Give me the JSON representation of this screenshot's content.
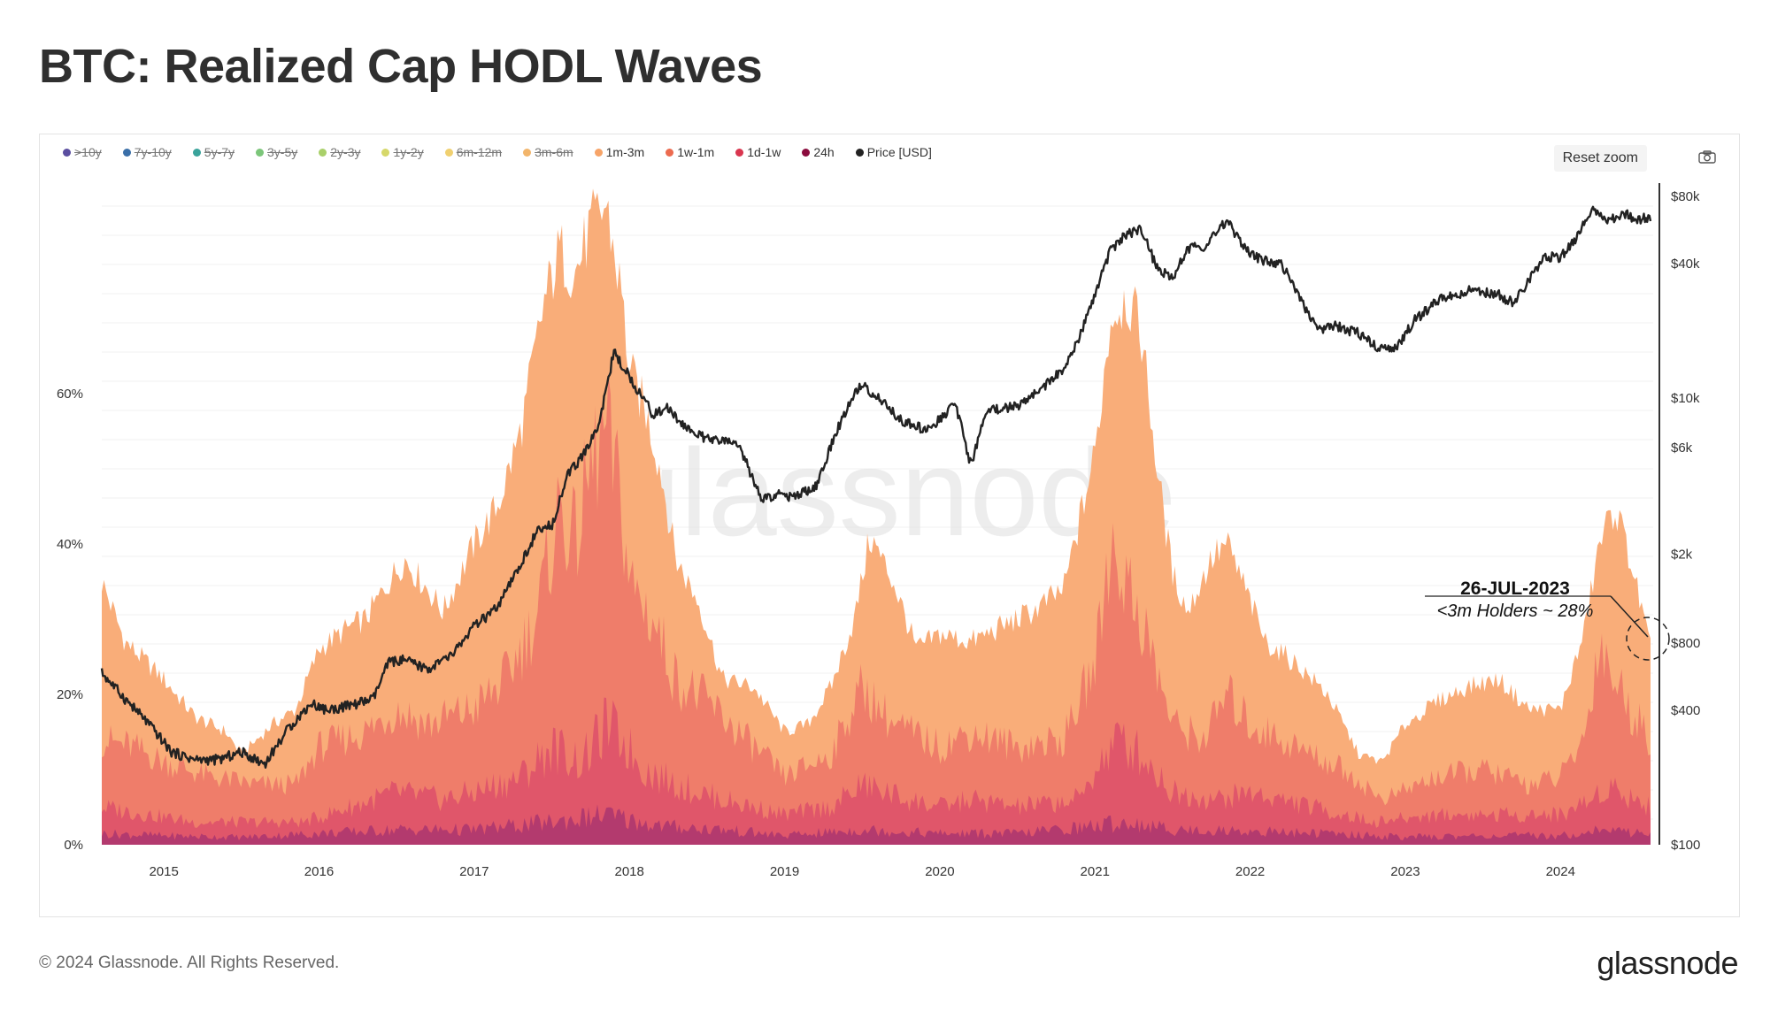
{
  "page": {
    "title": "BTC: Realized Cap HODL Waves"
  },
  "toolbar": {
    "reset_zoom_label": "Reset zoom",
    "camera_icon": "camera-icon"
  },
  "legend": [
    {
      "label": ">10y",
      "color": "#5b4ea0",
      "visible": false
    },
    {
      "label": "7y-10y",
      "color": "#3a6fa8",
      "visible": false
    },
    {
      "label": "5y-7y",
      "color": "#3aa39b",
      "visible": false
    },
    {
      "label": "3y-5y",
      "color": "#7cc67a",
      "visible": false
    },
    {
      "label": "2y-3y",
      "color": "#a9d06a",
      "visible": false
    },
    {
      "label": "1y-2y",
      "color": "#d6d86a",
      "visible": false
    },
    {
      "label": "6m-12m",
      "color": "#f0d070",
      "visible": false
    },
    {
      "label": "3m-6m",
      "color": "#f2b56b",
      "visible": false
    },
    {
      "label": "1m-3m",
      "color": "#f7a468",
      "visible": true
    },
    {
      "label": "1w-1m",
      "color": "#ec6b4f",
      "visible": true
    },
    {
      "label": "1d-1w",
      "color": "#d9364f",
      "visible": true
    },
    {
      "label": "24h",
      "color": "#8b0c3e",
      "visible": true
    },
    {
      "label": "Price [USD]",
      "color": "#222222",
      "visible": true
    }
  ],
  "watermark": "glassnode",
  "annotation": {
    "date": "26-JUL-2023",
    "text": "<3m Holders ~ 28%"
  },
  "footer": {
    "copyright": "© 2024 Glassnode. All Rights Reserved.",
    "logo": "glassnode"
  },
  "chart_data": {
    "type": "area",
    "title": "BTC: Realized Cap HODL Waves",
    "x_ticks": [
      2015,
      2016,
      2017,
      2018,
      2019,
      2020,
      2021,
      2022,
      2023,
      2024
    ],
    "xlim": [
      2014.6,
      2024.58
    ],
    "y_left": {
      "ticks": [
        "0%",
        "20%",
        "40%",
        "60%"
      ],
      "values": [
        0,
        20,
        40,
        60
      ],
      "ylim": [
        0,
        60
      ]
    },
    "y_right": {
      "scale": "log",
      "ticks": [
        "$100",
        "$400",
        "$800",
        "$2k",
        "$6k",
        "$10k",
        "$40k",
        "$80k"
      ],
      "values": [
        100,
        400,
        800,
        2000,
        6000,
        10000,
        40000,
        80000
      ],
      "ylim": [
        100,
        80000
      ]
    },
    "series": [
      {
        "name": "1m-3m",
        "type": "stacked-area",
        "color": "#f9ad79",
        "x": [
          2014.6,
          2014.75,
          2015.0,
          2015.2,
          2015.4,
          2015.5,
          2015.7,
          2015.85,
          2016.0,
          2016.2,
          2016.3,
          2016.45,
          2016.55,
          2016.7,
          2016.8,
          2017.0,
          2017.15,
          2017.3,
          2017.45,
          2017.55,
          2017.65,
          2017.75,
          2017.85,
          2017.95,
          2018.0,
          2018.1,
          2018.2,
          2018.3,
          2018.45,
          2018.6,
          2018.8,
          2019.0,
          2019.15,
          2019.3,
          2019.45,
          2019.55,
          2019.7,
          2019.85,
          2020.0,
          2020.2,
          2020.4,
          2020.6,
          2020.8,
          2021.0,
          2021.1,
          2021.2,
          2021.3,
          2021.4,
          2021.5,
          2021.6,
          2021.75,
          2021.85,
          2021.95,
          2022.1,
          2022.3,
          2022.5,
          2022.7,
          2022.85,
          2023.0,
          2023.2,
          2023.4,
          2023.6,
          2023.8,
          2024.0,
          2024.15,
          2024.25,
          2024.35,
          2024.45,
          2024.58
        ],
        "values": [
          35,
          27,
          22,
          17,
          15,
          12,
          16,
          18,
          26,
          29,
          30,
          35,
          38,
          34,
          31,
          40,
          45,
          55,
          72,
          79,
          76,
          82,
          85,
          73,
          63,
          58,
          50,
          38,
          32,
          22,
          21,
          15,
          16,
          21,
          30,
          41,
          35,
          26,
          28,
          27,
          29,
          31,
          34,
          52,
          70,
          73,
          68,
          50,
          36,
          31,
          38,
          40,
          35,
          27,
          24,
          20,
          12,
          11,
          16,
          19,
          21,
          22,
          18,
          18,
          28,
          40,
          45,
          38,
          26
        ]
      },
      {
        "name": "1w-1m",
        "type": "stacked-area",
        "color": "#ef7d6a",
        "x": [
          2014.6,
          2014.8,
          2015.0,
          2015.3,
          2015.6,
          2015.85,
          2016.0,
          2016.3,
          2016.5,
          2016.7,
          2017.0,
          2017.2,
          2017.4,
          2017.55,
          2017.65,
          2017.75,
          2017.85,
          2017.95,
          2018.0,
          2018.15,
          2018.3,
          2018.5,
          2018.7,
          2019.0,
          2019.3,
          2019.5,
          2019.7,
          2020.0,
          2020.2,
          2020.5,
          2020.8,
          2021.0,
          2021.1,
          2021.2,
          2021.3,
          2021.5,
          2021.7,
          2021.85,
          2022.0,
          2022.3,
          2022.6,
          2022.85,
          2023.2,
          2023.5,
          2023.8,
          2024.0,
          2024.15,
          2024.25,
          2024.35,
          2024.45,
          2024.58
        ],
        "values": [
          14,
          13,
          11,
          9,
          8,
          8,
          13,
          15,
          18,
          16,
          18,
          22,
          30,
          45,
          40,
          50,
          55,
          45,
          35,
          30,
          22,
          19,
          15,
          9,
          12,
          21,
          16,
          13,
          15,
          13,
          14,
          24,
          40,
          35,
          30,
          16,
          14,
          20,
          16,
          13,
          10,
          6,
          9,
          10,
          8,
          9,
          14,
          27,
          22,
          18,
          14
        ]
      },
      {
        "name": "1d-1w",
        "type": "stacked-area",
        "color": "#e0566a",
        "x": [
          2014.6,
          2014.9,
          2015.2,
          2015.6,
          2015.9,
          2016.2,
          2016.5,
          2016.8,
          2017.0,
          2017.3,
          2017.5,
          2017.7,
          2017.85,
          2017.95,
          2018.1,
          2018.3,
          2018.6,
          2019.0,
          2019.3,
          2019.5,
          2019.8,
          2020.0,
          2020.2,
          2020.5,
          2020.9,
          2021.0,
          2021.15,
          2021.3,
          2021.5,
          2021.8,
          2022.0,
          2022.4,
          2022.8,
          2023.2,
          2023.6,
          2024.0,
          2024.2,
          2024.3,
          2024.58
        ],
        "values": [
          5,
          4,
          3,
          3,
          3,
          5,
          7,
          6,
          7,
          9,
          13,
          11,
          16,
          14,
          10,
          8,
          6,
          4,
          5,
          8,
          6,
          5,
          6,
          5,
          6,
          10,
          14,
          12,
          7,
          6,
          7,
          5,
          3,
          4,
          4,
          4,
          6,
          8,
          5
        ]
      },
      {
        "name": "24h",
        "type": "stacked-area",
        "color": "#b33a6e",
        "x": [
          2014.6,
          2015.0,
          2015.5,
          2016.0,
          2016.5,
          2017.0,
          2017.5,
          2017.85,
          2017.95,
          2018.2,
          2018.6,
          2019.0,
          2019.5,
          2020.0,
          2020.5,
          2021.0,
          2021.2,
          2021.5,
          2022.0,
          2022.5,
          2023.0,
          2023.5,
          2024.0,
          2024.25,
          2024.58
        ],
        "values": [
          1.5,
          1.2,
          1,
          1.5,
          2,
          2,
          3,
          4,
          3.5,
          2.5,
          2,
          1.2,
          2,
          1.5,
          1.5,
          2.5,
          3,
          2,
          1.8,
          1.5,
          1,
          1.2,
          1.2,
          2,
          1.5
        ]
      },
      {
        "name": "Price [USD]",
        "type": "line",
        "axis": "right",
        "color": "#222222",
        "x": [
          2014.6,
          2014.75,
          2014.9,
          2015.05,
          2015.2,
          2015.35,
          2015.5,
          2015.65,
          2015.8,
          2015.95,
          2016.05,
          2016.2,
          2016.35,
          2016.45,
          2016.55,
          2016.7,
          2016.85,
          2017.0,
          2017.15,
          2017.3,
          2017.4,
          2017.5,
          2017.6,
          2017.7,
          2017.8,
          2017.9,
          2017.96,
          2018.05,
          2018.15,
          2018.25,
          2018.35,
          2018.5,
          2018.6,
          2018.7,
          2018.85,
          2018.95,
          2019.05,
          2019.2,
          2019.35,
          2019.45,
          2019.5,
          2019.6,
          2019.75,
          2019.9,
          2020.0,
          2020.1,
          2020.2,
          2020.3,
          2020.5,
          2020.65,
          2020.8,
          2020.9,
          2021.0,
          2021.1,
          2021.2,
          2021.3,
          2021.4,
          2021.5,
          2021.6,
          2021.7,
          2021.85,
          2021.95,
          2022.05,
          2022.2,
          2022.3,
          2022.4,
          2022.45,
          2022.55,
          2022.7,
          2022.85,
          2022.95,
          2023.05,
          2023.2,
          2023.3,
          2023.45,
          2023.6,
          2023.7,
          2023.8,
          2023.9,
          2024.0,
          2024.1,
          2024.2,
          2024.3,
          2024.4,
          2024.5,
          2024.58
        ],
        "values": [
          590,
          450,
          350,
          260,
          240,
          240,
          260,
          230,
          330,
          430,
          400,
          420,
          450,
          660,
          670,
          610,
          700,
          950,
          1150,
          1800,
          2500,
          2700,
          4500,
          5500,
          7500,
          16000,
          13800,
          11000,
          8500,
          9000,
          7500,
          6500,
          6400,
          6300,
          3500,
          3700,
          3600,
          4000,
          7500,
          10500,
          11500,
          10000,
          8000,
          7200,
          8000,
          9500,
          5000,
          8800,
          9200,
          11000,
          13500,
          18500,
          29000,
          46000,
          54000,
          57000,
          38000,
          34000,
          47000,
          48000,
          62000,
          48000,
          42000,
          40000,
          30000,
          22000,
          20000,
          21000,
          19500,
          16500,
          16800,
          22000,
          27000,
          29000,
          30500,
          29000,
          26500,
          34000,
          43000,
          42500,
          52000,
          70000,
          62000,
          67000,
          63000,
          65000
        ]
      }
    ],
    "grid": true,
    "legend_position": "top-left"
  }
}
